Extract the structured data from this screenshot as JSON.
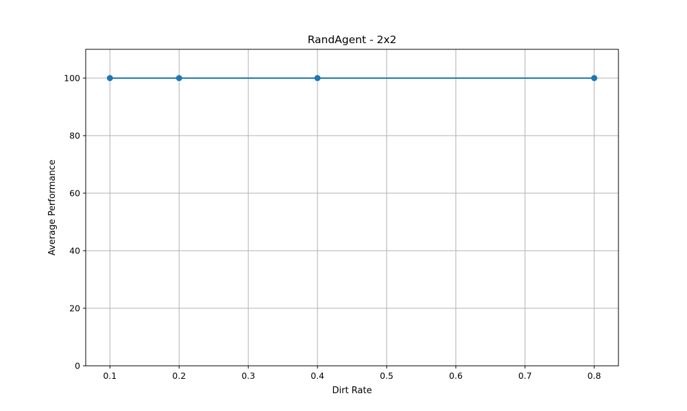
{
  "chart_data": {
    "type": "line",
    "title": "RandAgent - 2x2",
    "xlabel": "Dirt Rate",
    "ylabel": "Average Performance",
    "xlim": [
      0.065,
      0.835
    ],
    "ylim": [
      0,
      110
    ],
    "xticks": [
      0.1,
      0.2,
      0.3,
      0.4,
      0.5,
      0.6,
      0.7,
      0.8
    ],
    "yticks": [
      0,
      20,
      40,
      60,
      80,
      100
    ],
    "grid": true,
    "series": [
      {
        "x": [
          0.1,
          0.2,
          0.4,
          0.8
        ],
        "y": [
          100,
          100,
          100,
          100
        ],
        "color": "#1f77b4",
        "marker": "circle"
      }
    ]
  }
}
